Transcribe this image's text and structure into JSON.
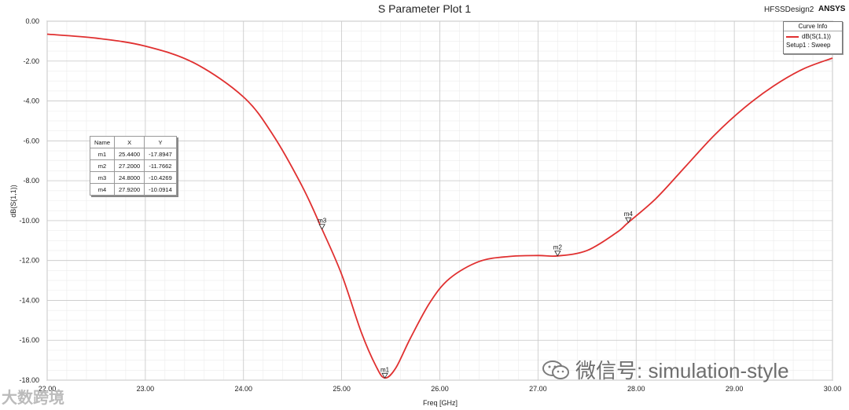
{
  "chart_data": {
    "type": "line",
    "title": "S Parameter Plot 1",
    "design_label": "HFSSDesign2",
    "brand": "ANSYS",
    "xlabel": "Freq [GHz]",
    "ylabel": "dB(S(1,1))",
    "xlim": [
      22.0,
      30.0
    ],
    "ylim": [
      -18.0,
      0.0
    ],
    "x_ticks": [
      "22.00",
      "23.00",
      "24.00",
      "25.00",
      "26.00",
      "27.00",
      "28.00",
      "29.00",
      "30.00"
    ],
    "y_ticks": [
      "0.00",
      "-2.00",
      "-4.00",
      "-6.00",
      "-8.00",
      "-10.00",
      "-12.00",
      "-14.00",
      "-16.00",
      "-18.00"
    ],
    "grid": true,
    "legend": {
      "title": "Curve Info",
      "position": "top-right",
      "entries": [
        {
          "name": "dB(S(1,1))",
          "sub": "Setup1 : Sweep",
          "color": "#e03030"
        }
      ]
    },
    "series": [
      {
        "name": "dB(S(1,1))",
        "color": "#e03030",
        "x": [
          22.0,
          22.5,
          23.0,
          23.5,
          24.0,
          24.3,
          24.6,
          24.8,
          25.0,
          25.2,
          25.35,
          25.44,
          25.55,
          25.7,
          25.9,
          26.1,
          26.4,
          26.7,
          27.0,
          27.2,
          27.5,
          27.8,
          27.92,
          28.2,
          28.5,
          28.8,
          29.1,
          29.4,
          29.7,
          30.0
        ],
        "y": [
          -0.65,
          -0.85,
          -1.25,
          -2.1,
          -3.8,
          -5.7,
          -8.3,
          -10.43,
          -12.7,
          -15.6,
          -17.3,
          -17.89,
          -17.4,
          -15.9,
          -14.1,
          -12.9,
          -12.05,
          -11.8,
          -11.75,
          -11.77,
          -11.5,
          -10.6,
          -10.09,
          -8.9,
          -7.3,
          -5.7,
          -4.35,
          -3.25,
          -2.4,
          -1.85
        ]
      }
    ],
    "markers": {
      "headers": [
        "Name",
        "X",
        "Y"
      ],
      "rows": [
        [
          "m1",
          "25.4400",
          "-17.8947"
        ],
        [
          "m2",
          "27.2000",
          "-11.7662"
        ],
        [
          "m3",
          "24.8000",
          "-10.4269"
        ],
        [
          "m4",
          "27.9200",
          "-10.0914"
        ]
      ],
      "points": [
        {
          "name": "m1",
          "x": 25.44,
          "y": -17.8947
        },
        {
          "name": "m2",
          "x": 27.2,
          "y": -11.7662
        },
        {
          "name": "m3",
          "x": 24.8,
          "y": -10.4269
        },
        {
          "name": "m4",
          "x": 27.92,
          "y": -10.0914
        }
      ]
    }
  },
  "watermark": {
    "main": "微信号: simulation-style",
    "small": "大数跨境"
  }
}
